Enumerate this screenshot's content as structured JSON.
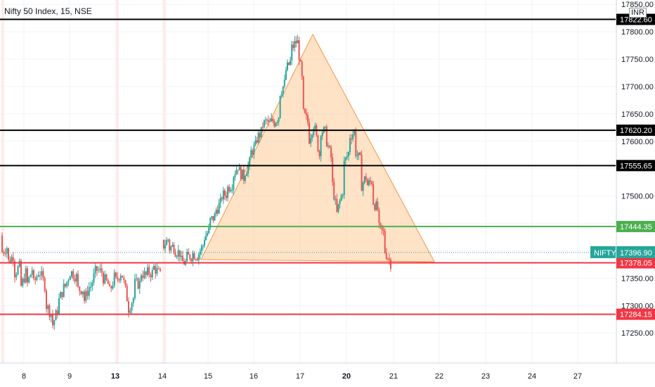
{
  "header": {
    "symbol_title": "Nifty 50 Index, 15, NSE",
    "currency": "INR"
  },
  "colors": {
    "up": "#26a69a",
    "down": "#ef5350",
    "triangle_fill": "#ffcc99",
    "triangle_stroke": "#f7a35c",
    "black_line": "#000000",
    "green_line": "#4caf50",
    "red_line": "#f23645",
    "nifty_label": "#26a69a"
  },
  "chart_data": {
    "type": "candlestick",
    "title": "Nifty 50 Index, 15, NSE",
    "y_axis": {
      "range": [
        17195,
        17858
      ],
      "ticks": [
        17250,
        17300,
        17350,
        17400,
        17450,
        17500,
        17550,
        17600,
        17650,
        17700,
        17750,
        17800,
        17850
      ],
      "tick_labels": [
        "17250.00",
        "17300.00",
        "17350.00",
        "",
        "",
        "17500.00",
        "",
        "17600.00",
        "17650.00",
        "17700.00",
        "17750.00",
        "17800.00",
        "17850.00"
      ],
      "position": "right"
    },
    "x_axis": {
      "ticks": [
        {
          "label": "8",
          "bold": false
        },
        {
          "label": "9",
          "bold": false
        },
        {
          "label": "13",
          "bold": true
        },
        {
          "label": "14",
          "bold": false
        },
        {
          "label": "15",
          "bold": false
        },
        {
          "label": "16",
          "bold": false
        },
        {
          "label": "17",
          "bold": false
        },
        {
          "label": "20",
          "bold": true
        },
        {
          "label": "21",
          "bold": false
        },
        {
          "label": "22",
          "bold": false
        },
        {
          "label": "23",
          "bold": false
        },
        {
          "label": "24",
          "bold": false
        },
        {
          "label": "27",
          "bold": false
        }
      ]
    },
    "grid": true,
    "price_path": [
      [
        17428,
        17398
      ],
      [
        17410,
        17380
      ],
      [
        17395,
        17360
      ],
      [
        17375,
        17335
      ],
      [
        17368,
        17340
      ],
      [
        17375,
        17340
      ],
      [
        17368,
        17360
      ],
      [
        17330,
        17300
      ],
      [
        17280,
        17265
      ],
      [
        17300,
        17310
      ],
      [
        17340,
        17335
      ],
      [
        17370,
        17360
      ],
      [
        17350,
        17330
      ],
      [
        17330,
        17310
      ],
      [
        17342,
        17335
      ],
      [
        17370,
        17365
      ],
      [
        17360,
        17350
      ],
      [
        17335,
        17325
      ],
      [
        17360,
        17345
      ],
      [
        17365,
        17355
      ],
      [
        17300,
        17295
      ],
      [
        17320,
        17340
      ],
      [
        17340,
        17360
      ],
      [
        17352,
        17360
      ],
      [
        17360,
        17370
      ],
      [
        17355,
        17360
      ],
      [
        17420,
        17410
      ],
      [
        17425,
        17405
      ],
      [
        17410,
        17400
      ],
      [
        17395,
        17380
      ],
      [
        17378,
        17388
      ],
      [
        17392,
        17395
      ],
      [
        17390,
        17395
      ],
      [
        17415,
        17425
      ],
      [
        17440,
        17455
      ],
      [
        17465,
        17475
      ],
      [
        17490,
        17500
      ],
      [
        17505,
        17515
      ],
      [
        17525,
        17540
      ],
      [
        17560,
        17545
      ],
      [
        17530,
        17545
      ],
      [
        17565,
        17580
      ],
      [
        17595,
        17605
      ],
      [
        17620,
        17630
      ],
      [
        17640,
        17630
      ],
      [
        17640,
        17635
      ],
      [
        17650,
        17690
      ],
      [
        17710,
        17730
      ],
      [
        17750,
        17770
      ],
      [
        17785,
        17780
      ],
      [
        17690,
        17650
      ],
      [
        17630,
        17605
      ],
      [
        17640,
        17620
      ],
      [
        17560,
        17620
      ],
      [
        17615,
        17600
      ],
      [
        17560,
        17520
      ],
      [
        17450,
        17480
      ],
      [
        17520,
        17560
      ],
      [
        17585,
        17610
      ],
      [
        17620,
        17580
      ],
      [
        17560,
        17520
      ],
      [
        17540,
        17520
      ],
      [
        17530,
        17490
      ],
      [
        17470,
        17440
      ],
      [
        17430,
        17400
      ],
      [
        17378,
        17370
      ]
    ],
    "levels": [
      {
        "value": 17822.6,
        "label": "17822.60",
        "color": "#000000"
      },
      {
        "value": 17620.2,
        "label": "17620.20",
        "color": "#000000"
      },
      {
        "value": 17555.65,
        "label": "17555.65",
        "color": "#000000"
      },
      {
        "value": 17444.35,
        "label": "17444.35",
        "color": "#4caf50"
      },
      {
        "value": 17378.05,
        "label": "17378.05",
        "color": "#f23645"
      },
      {
        "value": 17284.15,
        "label": "17284.15",
        "color": "#f23645"
      }
    ],
    "last_price": {
      "value": 17396.9,
      "label": "17396.90",
      "series_label": "NIFTY"
    },
    "pattern": {
      "type": "triangle",
      "vertices_prices": [
        17384,
        17795,
        17380
      ]
    }
  }
}
